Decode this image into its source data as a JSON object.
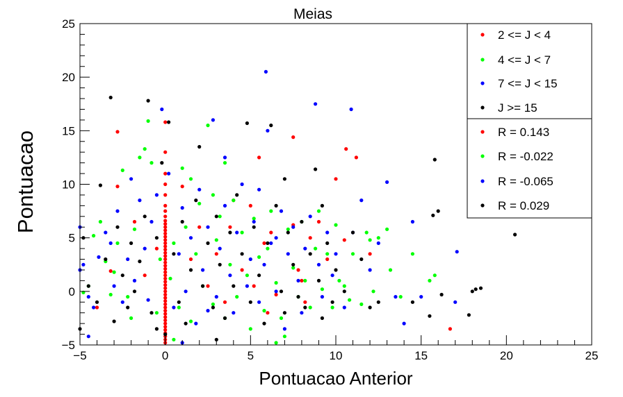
{
  "chart_data": {
    "type": "scatter",
    "title": "Meias",
    "xlabel": "Pontuacao Anterior",
    "ylabel": "Pontuacao",
    "xlim": [
      -5,
      25
    ],
    "ylim": [
      -5,
      25
    ],
    "xticks": [
      "−5",
      "0",
      "5",
      "10",
      "15",
      "20",
      "25"
    ],
    "yticks": [
      "−5",
      "0",
      "5",
      "10",
      "15",
      "20",
      "25"
    ],
    "grid": false,
    "legend_position": "top-right",
    "series": [
      {
        "name": "2 <= J < 4",
        "color": "#ff0000",
        "correlation_label": "R = 0.143",
        "points": [
          [
            0,
            -4.8
          ],
          [
            0,
            -4.5
          ],
          [
            0,
            -4.2
          ],
          [
            0,
            -3.9
          ],
          [
            0,
            -3.6
          ],
          [
            0,
            -3.3
          ],
          [
            0,
            -3.0
          ],
          [
            0,
            -2.7
          ],
          [
            0,
            -2.4
          ],
          [
            0,
            -2.1
          ],
          [
            0,
            -1.8
          ],
          [
            0,
            -1.5
          ],
          [
            0,
            -1.2
          ],
          [
            0,
            -0.9
          ],
          [
            0,
            -0.6
          ],
          [
            0,
            -0.3
          ],
          [
            0,
            0.0
          ],
          [
            0,
            0.3
          ],
          [
            0,
            0.6
          ],
          [
            0,
            0.9
          ],
          [
            0,
            1.2
          ],
          [
            0,
            1.5
          ],
          [
            0,
            1.8
          ],
          [
            0,
            2.1
          ],
          [
            0,
            2.4
          ],
          [
            0,
            2.7
          ],
          [
            0,
            3.0
          ],
          [
            0,
            3.3
          ],
          [
            0,
            3.6
          ],
          [
            0,
            3.9
          ],
          [
            0,
            4.2
          ],
          [
            0,
            4.5
          ],
          [
            0,
            4.8
          ],
          [
            0,
            5.1
          ],
          [
            0,
            5.4
          ],
          [
            0,
            5.7
          ],
          [
            0,
            6.0
          ],
          [
            0,
            6.3
          ],
          [
            0,
            6.6
          ],
          [
            0,
            7.0
          ],
          [
            0,
            7.5
          ],
          [
            0,
            8.0
          ],
          [
            0,
            9.0
          ],
          [
            0,
            10.0
          ],
          [
            0,
            11.0
          ],
          [
            0,
            13.0
          ],
          [
            0,
            15.8
          ],
          [
            -2.8,
            14.9
          ],
          [
            -2.8,
            9.8
          ],
          [
            -1.8,
            6.5
          ],
          [
            -3.2,
            1.9
          ],
          [
            -4.0,
            -1.5
          ],
          [
            1.0,
            9.8
          ],
          [
            2.0,
            6.0
          ],
          [
            3.0,
            3.5
          ],
          [
            4.0,
            8.5
          ],
          [
            5.0,
            8.0
          ],
          [
            5.5,
            12.5
          ],
          [
            5.8,
            4.5
          ],
          [
            6.2,
            5.5
          ],
          [
            6.5,
            -0.3
          ],
          [
            7.5,
            14.4
          ],
          [
            7.5,
            6.2
          ],
          [
            7.8,
            2.0
          ],
          [
            8.0,
            1.0
          ],
          [
            8.5,
            5.0
          ],
          [
            9.0,
            6.5
          ],
          [
            9.5,
            3.0
          ],
          [
            10.0,
            10.5
          ],
          [
            10.6,
            13.3
          ],
          [
            11.2,
            12.5
          ],
          [
            10.5,
            4.8
          ],
          [
            12.0,
            3.5
          ],
          [
            16.7,
            -3.5
          ],
          [
            3.5,
            -1.0
          ],
          [
            2.5,
            0.5
          ],
          [
            1.5,
            3.0
          ],
          [
            4.5,
            2.0
          ],
          [
            6.0,
            -2.0
          ],
          [
            -0.5,
            4.0
          ],
          [
            8.2,
            -1.0
          ],
          [
            5.2,
            0.5
          ],
          [
            3.8,
            6.0
          ],
          [
            -1.2,
            1.5
          ]
        ]
      },
      {
        "name": "4 <= J < 7",
        "color": "#00ff00",
        "correlation_label": "R = -0.022",
        "points": [
          [
            -4.8,
            -0.1
          ],
          [
            -4.5,
            0.5
          ],
          [
            -4.2,
            5.2
          ],
          [
            -3.8,
            6.5
          ],
          [
            -3.5,
            2.8
          ],
          [
            -3.2,
            -0.3
          ],
          [
            -3.0,
            1.8
          ],
          [
            -2.8,
            4.5
          ],
          [
            -2.5,
            11.3
          ],
          [
            -2.2,
            -0.5
          ],
          [
            -2.0,
            -2.5
          ],
          [
            -1.8,
            5.8
          ],
          [
            -1.5,
            12.5
          ],
          [
            -1.2,
            13.3
          ],
          [
            -1.0,
            15.9
          ],
          [
            -0.8,
            12.0
          ],
          [
            -0.5,
            -2.0
          ],
          [
            -0.3,
            3.0
          ],
          [
            0.3,
            1.2
          ],
          [
            0.5,
            4.5
          ],
          [
            0.8,
            -1.5
          ],
          [
            1.0,
            11.5
          ],
          [
            1.2,
            6.0
          ],
          [
            1.5,
            -2.8
          ],
          [
            1.8,
            3.5
          ],
          [
            2.0,
            8.2
          ],
          [
            2.2,
            0.5
          ],
          [
            2.5,
            15.5
          ],
          [
            2.8,
            -1.2
          ],
          [
            3.0,
            4.8
          ],
          [
            3.2,
            7.0
          ],
          [
            3.5,
            -2.5
          ],
          [
            3.8,
            2.5
          ],
          [
            4.0,
            8.5
          ],
          [
            4.2,
            -0.5
          ],
          [
            4.5,
            5.5
          ],
          [
            4.8,
            1.5
          ],
          [
            5.0,
            -3.5
          ],
          [
            5.2,
            6.8
          ],
          [
            5.5,
            3.2
          ],
          [
            5.8,
            -1.8
          ],
          [
            6.0,
            4.0
          ],
          [
            6.2,
            7.5
          ],
          [
            6.5,
            0.8
          ],
          [
            6.8,
            -2.5
          ],
          [
            7.0,
            -4.2
          ],
          [
            7.2,
            5.8
          ],
          [
            7.5,
            2.2
          ],
          [
            7.8,
            -0.5
          ],
          [
            8.0,
            6.5
          ],
          [
            8.2,
            1.0
          ],
          [
            8.5,
            -1.5
          ],
          [
            8.8,
            4.0
          ],
          [
            9.0,
            7.5
          ],
          [
            9.2,
            0.2
          ],
          [
            9.5,
            3.5
          ],
          [
            9.8,
            -1.5
          ],
          [
            10.0,
            6.2
          ],
          [
            10.2,
            1.0
          ],
          [
            10.5,
            0.5
          ],
          [
            10.8,
            -0.8
          ],
          [
            11.0,
            3.5
          ],
          [
            11.5,
            -1.2
          ],
          [
            11.8,
            5.5
          ],
          [
            12.0,
            4.8
          ],
          [
            12.2,
            0.0
          ],
          [
            12.5,
            5.0
          ],
          [
            13.0,
            5.8
          ],
          [
            13.2,
            2.0
          ],
          [
            13.8,
            -0.5
          ],
          [
            14.5,
            3.5
          ],
          [
            15.5,
            1.0
          ],
          [
            15.8,
            1.5
          ],
          [
            6.5,
            -4.8
          ],
          [
            1.5,
            10.5
          ],
          [
            2.8,
            9.0
          ],
          [
            3.5,
            12.0
          ],
          [
            0.5,
            -4.5
          ]
        ]
      },
      {
        "name": "7 <= J < 15",
        "color": "#0000ff",
        "correlation_label": "R = -0.065",
        "points": [
          [
            -5.0,
            6.0
          ],
          [
            -5.0,
            2.0
          ],
          [
            -4.8,
            2.5
          ],
          [
            -4.5,
            -0.5
          ],
          [
            -4.2,
            -1.5
          ],
          [
            -3.9,
            3.2
          ],
          [
            -3.5,
            5.5
          ],
          [
            -3.2,
            4.5
          ],
          [
            -3.0,
            0.5
          ],
          [
            -2.8,
            7.5
          ],
          [
            -2.5,
            -1.0
          ],
          [
            -2.2,
            3.0
          ],
          [
            -2.0,
            10.5
          ],
          [
            -1.8,
            1.0
          ],
          [
            -1.5,
            8.5
          ],
          [
            -1.2,
            4.0
          ],
          [
            -1.0,
            -0.8
          ],
          [
            -0.8,
            6.5
          ],
          [
            -0.5,
            9.0
          ],
          [
            -0.2,
            17.0
          ],
          [
            0.2,
            11.0
          ],
          [
            0.5,
            -1.5
          ],
          [
            0.8,
            3.5
          ],
          [
            1.0,
            7.8
          ],
          [
            1.2,
            0.0
          ],
          [
            1.5,
            5.0
          ],
          [
            1.8,
            -3.0
          ],
          [
            2.0,
            9.5
          ],
          [
            2.2,
            2.0
          ],
          [
            2.5,
            6.0
          ],
          [
            2.8,
            16.0
          ],
          [
            3.0,
            -0.5
          ],
          [
            3.2,
            4.0
          ],
          [
            3.5,
            8.0
          ],
          [
            3.8,
            1.5
          ],
          [
            4.0,
            -2.0
          ],
          [
            4.2,
            5.5
          ],
          [
            4.5,
            10.0
          ],
          [
            4.8,
            0.5
          ],
          [
            5.0,
            3.0
          ],
          [
            5.2,
            6.5
          ],
          [
            5.5,
            -1.0
          ],
          [
            5.8,
            2.5
          ],
          [
            5.9,
            20.5
          ],
          [
            6.0,
            15.0
          ],
          [
            6.2,
            4.5
          ],
          [
            6.5,
            0.0
          ],
          [
            6.8,
            7.5
          ],
          [
            7.0,
            -3.5
          ],
          [
            7.2,
            3.5
          ],
          [
            7.5,
            6.0
          ],
          [
            7.8,
            1.0
          ],
          [
            8.0,
            -2.0
          ],
          [
            8.2,
            4.0
          ],
          [
            8.5,
            7.0
          ],
          [
            8.8,
            17.5
          ],
          [
            9.0,
            2.5
          ],
          [
            9.2,
            -0.5
          ],
          [
            9.5,
            5.5
          ],
          [
            9.8,
            1.5
          ],
          [
            10.0,
            3.5
          ],
          [
            10.5,
            -1.5
          ],
          [
            10.9,
            17.0
          ],
          [
            11.0,
            5.5
          ],
          [
            11.5,
            8.5
          ],
          [
            12.0,
            2.0
          ],
          [
            12.5,
            4.5
          ],
          [
            13.0,
            10.2
          ],
          [
            13.5,
            -0.5
          ],
          [
            14.0,
            -3.0
          ],
          [
            14.5,
            6.5
          ],
          [
            15.0,
            -0.5
          ],
          [
            17.1,
            3.7
          ],
          [
            17.0,
            -1.0
          ],
          [
            -4.5,
            -4.2
          ],
          [
            1.0,
            -4.8
          ],
          [
            3.5,
            12.5
          ],
          [
            5.5,
            9.5
          ],
          [
            2.5,
            -1.8
          ],
          [
            6.5,
            5.0
          ]
        ]
      },
      {
        "name": "J >= 15",
        "color": "#000000",
        "correlation_label": "R = 0.029",
        "points": [
          [
            -5.0,
            -3.5
          ],
          [
            -4.8,
            5.0
          ],
          [
            -4.5,
            0.5
          ],
          [
            -4.0,
            -1.0
          ],
          [
            -3.8,
            9.9
          ],
          [
            -3.5,
            3.0
          ],
          [
            -3.2,
            18.1
          ],
          [
            -3.0,
            -2.8
          ],
          [
            -2.8,
            6.0
          ],
          [
            -2.5,
            1.5
          ],
          [
            -2.2,
            -1.5
          ],
          [
            -2.0,
            4.5
          ],
          [
            -1.8,
            0.0
          ],
          [
            -1.5,
            2.8
          ],
          [
            -1.2,
            7.0
          ],
          [
            -1.0,
            17.8
          ],
          [
            -0.8,
            -2.0
          ],
          [
            -0.5,
            5.0
          ],
          [
            -0.2,
            12.0
          ],
          [
            0.2,
            15.8
          ],
          [
            0.5,
            3.5
          ],
          [
            0.8,
            -1.0
          ],
          [
            1.0,
            6.5
          ],
          [
            1.2,
            -3.0
          ],
          [
            1.5,
            2.0
          ],
          [
            1.8,
            8.5
          ],
          [
            2.0,
            13.5
          ],
          [
            2.2,
            0.5
          ],
          [
            2.5,
            4.5
          ],
          [
            2.8,
            -1.5
          ],
          [
            3.0,
            7.0
          ],
          [
            3.2,
            2.5
          ],
          [
            3.5,
            -2.5
          ],
          [
            3.8,
            5.5
          ],
          [
            4.0,
            0.5
          ],
          [
            4.2,
            9.0
          ],
          [
            4.5,
            3.5
          ],
          [
            4.8,
            15.7
          ],
          [
            5.0,
            -1.0
          ],
          [
            5.2,
            6.0
          ],
          [
            5.5,
            1.5
          ],
          [
            5.8,
            -3.0
          ],
          [
            6.0,
            4.5
          ],
          [
            6.2,
            15.5
          ],
          [
            6.5,
            8.0
          ],
          [
            6.8,
            0.0
          ],
          [
            7.0,
            -2.0
          ],
          [
            7.2,
            5.5
          ],
          [
            7.5,
            2.5
          ],
          [
            7.8,
            -0.5
          ],
          [
            8.0,
            6.5
          ],
          [
            8.2,
            -1.5
          ],
          [
            8.5,
            3.5
          ],
          [
            8.8,
            11.4
          ],
          [
            9.0,
            1.0
          ],
          [
            9.2,
            -2.5
          ],
          [
            9.5,
            4.5
          ],
          [
            9.8,
            -1.0
          ],
          [
            10.0,
            2.0
          ],
          [
            10.5,
            0.0
          ],
          [
            11.0,
            5.5
          ],
          [
            11.5,
            3.0
          ],
          [
            12.0,
            -1.5
          ],
          [
            12.5,
            -1.0
          ],
          [
            14.5,
            -1.0
          ],
          [
            15.5,
            -2.3
          ],
          [
            15.7,
            7.1
          ],
          [
            15.8,
            12.3
          ],
          [
            16.0,
            7.5
          ],
          [
            16.2,
            -0.3
          ],
          [
            17.8,
            -2.2
          ],
          [
            18.0,
            0.0
          ],
          [
            18.2,
            0.2
          ],
          [
            18.5,
            0.3
          ],
          [
            20.5,
            5.3
          ],
          [
            0.0,
            -4.0
          ],
          [
            3.0,
            -4.5
          ],
          [
            7.0,
            10.5
          ],
          [
            9.2,
            8.0
          ],
          [
            -0.5,
            -3.5
          ]
        ]
      }
    ]
  }
}
